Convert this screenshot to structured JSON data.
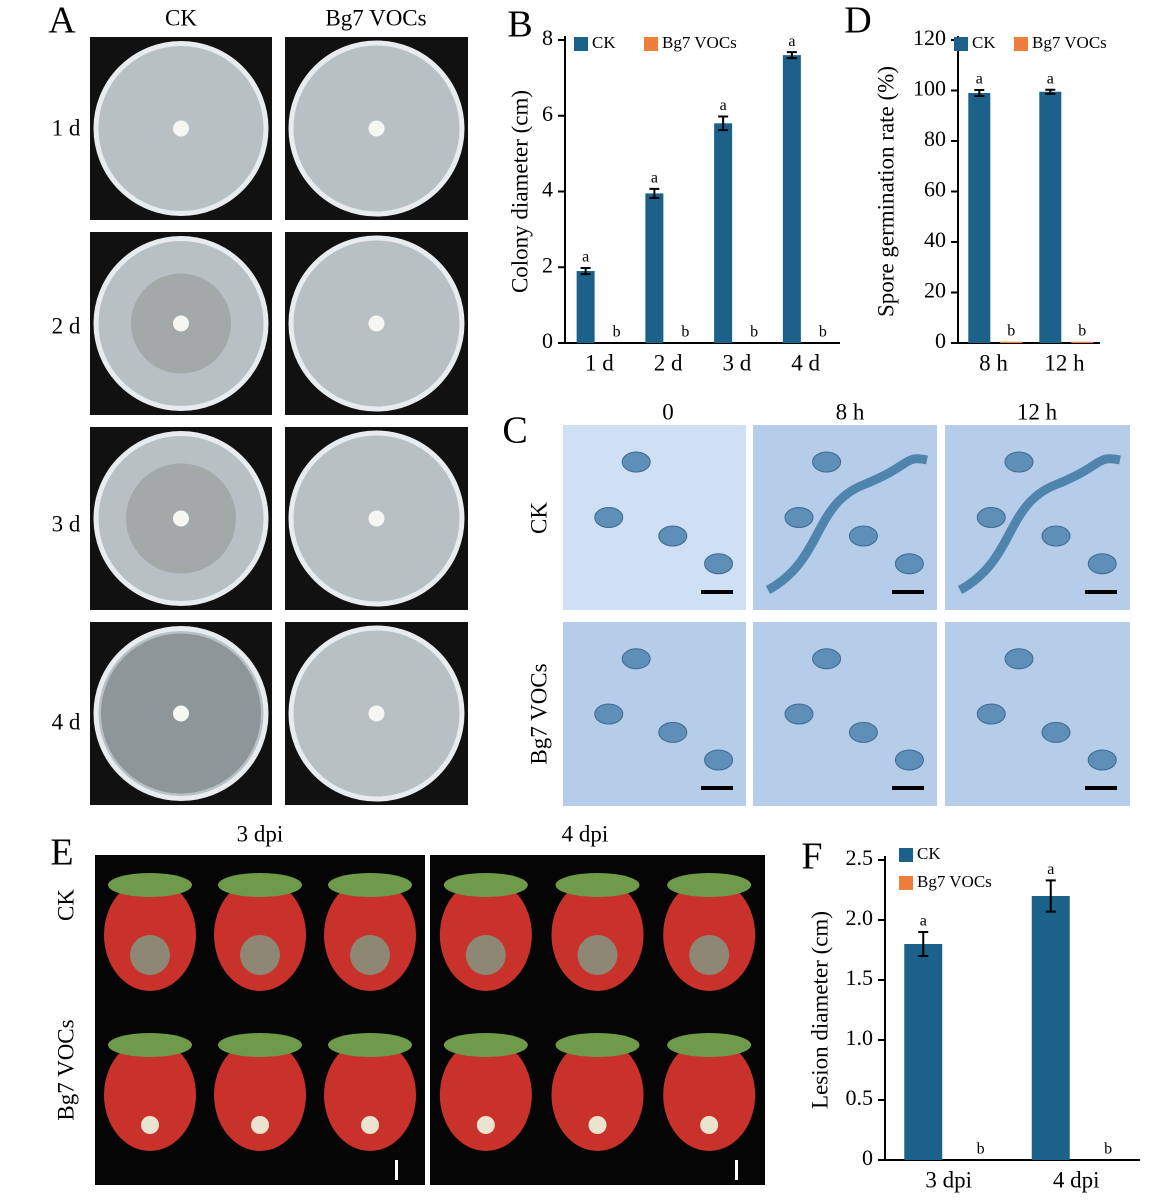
{
  "panels": {
    "A": {
      "label": "A",
      "columns": [
        "CK",
        "Bg7 VOCs"
      ],
      "rows": [
        "1 d",
        "2 d",
        "3 d",
        "4 d"
      ]
    },
    "C": {
      "label": "C",
      "columns": [
        "0",
        "8 h",
        "12 h"
      ],
      "rows": [
        "CK",
        "Bg7 VOCs"
      ]
    },
    "E": {
      "label": "E",
      "columns": [
        "3 dpi",
        "4 dpi"
      ],
      "rows": [
        "CK",
        "Bg7 VOCs"
      ]
    }
  },
  "chart_data": [
    {
      "type": "bar",
      "panel_label": "B",
      "y_label": "Colony diameter (cm)",
      "categories": [
        "1 d",
        "2 d",
        "3 d",
        "4 d"
      ],
      "series": [
        {
          "name": "CK",
          "color": "#1b6189",
          "values": [
            1.9,
            3.95,
            5.8,
            7.6
          ],
          "errors": [
            0.08,
            0.12,
            0.18,
            0.08
          ],
          "letters": [
            "a",
            "a",
            "a",
            "a"
          ]
        },
        {
          "name": "Bg7 VOCs",
          "color": "#ef7d3b",
          "values": [
            0,
            0,
            0,
            0
          ],
          "letters": [
            "b",
            "b",
            "b",
            "b"
          ]
        }
      ],
      "ylim": [
        0,
        8
      ],
      "yticks": [
        0,
        2,
        4,
        6,
        8
      ],
      "legend": "upper left"
    },
    {
      "type": "bar",
      "panel_label": "D",
      "y_label": "Spore germination rate (%)",
      "categories": [
        "8 h",
        "12 h"
      ],
      "series": [
        {
          "name": "CK",
          "color": "#1b6189",
          "values": [
            99,
            99.5
          ],
          "errors": [
            1.2,
            0.8
          ],
          "letters": [
            "a",
            "a"
          ]
        },
        {
          "name": "Bg7 VOCs",
          "color": "#ef7d3b",
          "values": [
            0.5,
            0.5
          ],
          "letters": [
            "b",
            "b"
          ]
        }
      ],
      "ylim": [
        0,
        120
      ],
      "yticks": [
        0,
        20,
        40,
        60,
        80,
        100,
        120
      ],
      "legend": "upper left"
    },
    {
      "type": "bar",
      "panel_label": "F",
      "y_label": "Lesion diameter (cm)",
      "categories": [
        "3 dpi",
        "4 dpi"
      ],
      "series": [
        {
          "name": "CK",
          "color": "#1b6189",
          "values": [
            1.8,
            2.2
          ],
          "errors": [
            0.1,
            0.13
          ],
          "letters": [
            "a",
            "a"
          ]
        },
        {
          "name": "Bg7 VOCs",
          "color": "#ef7d3b",
          "values": [
            0,
            0
          ],
          "letters": [
            "b",
            "b"
          ]
        }
      ],
      "ylim": [
        0,
        2.5
      ],
      "yticks": [
        0,
        0.5,
        {
          "value": 1,
          "label": "1.0"
        },
        1.5,
        {
          "value": 2,
          "label": "2.0"
        },
        2.5
      ],
      "legend": "upper left"
    }
  ]
}
